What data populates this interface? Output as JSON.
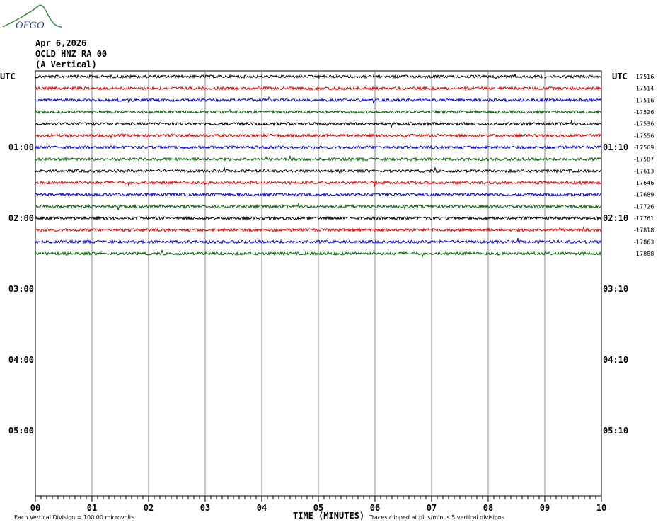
{
  "logo": "OFGO",
  "header": {
    "date": "Apr 6,2026",
    "station": "OCLD HNZ RA 00",
    "component": "(A Vertical)"
  },
  "left_labels": [
    "UTC",
    "01:00",
    "02:00",
    "03:00",
    "04:00",
    "05:00"
  ],
  "right_labels": [
    "UTC",
    "01:10",
    "02:10",
    "03:10",
    "04:10",
    "05:10"
  ],
  "trace_colors": [
    "#000000",
    "#e00000",
    "#0000e0",
    "#006000"
  ],
  "trace_offsets": [
    -17516,
    -17514,
    -17516,
    -17526,
    -17536,
    -17556,
    -17569,
    -17587,
    -17613,
    -17646,
    -17689,
    -17726,
    -17761,
    -17818,
    -17863,
    -17888
  ],
  "x_ticks": [
    "00",
    "01",
    "02",
    "03",
    "04",
    "05",
    "06",
    "07",
    "08",
    "09",
    "10"
  ],
  "footer": {
    "division": "Each Vertical Division =  100.00 microvolts",
    "axis_title": "TIME (MINUTES)",
    "clip_note": "Traces clipped at plus/minus 5 vertical divisions"
  }
}
